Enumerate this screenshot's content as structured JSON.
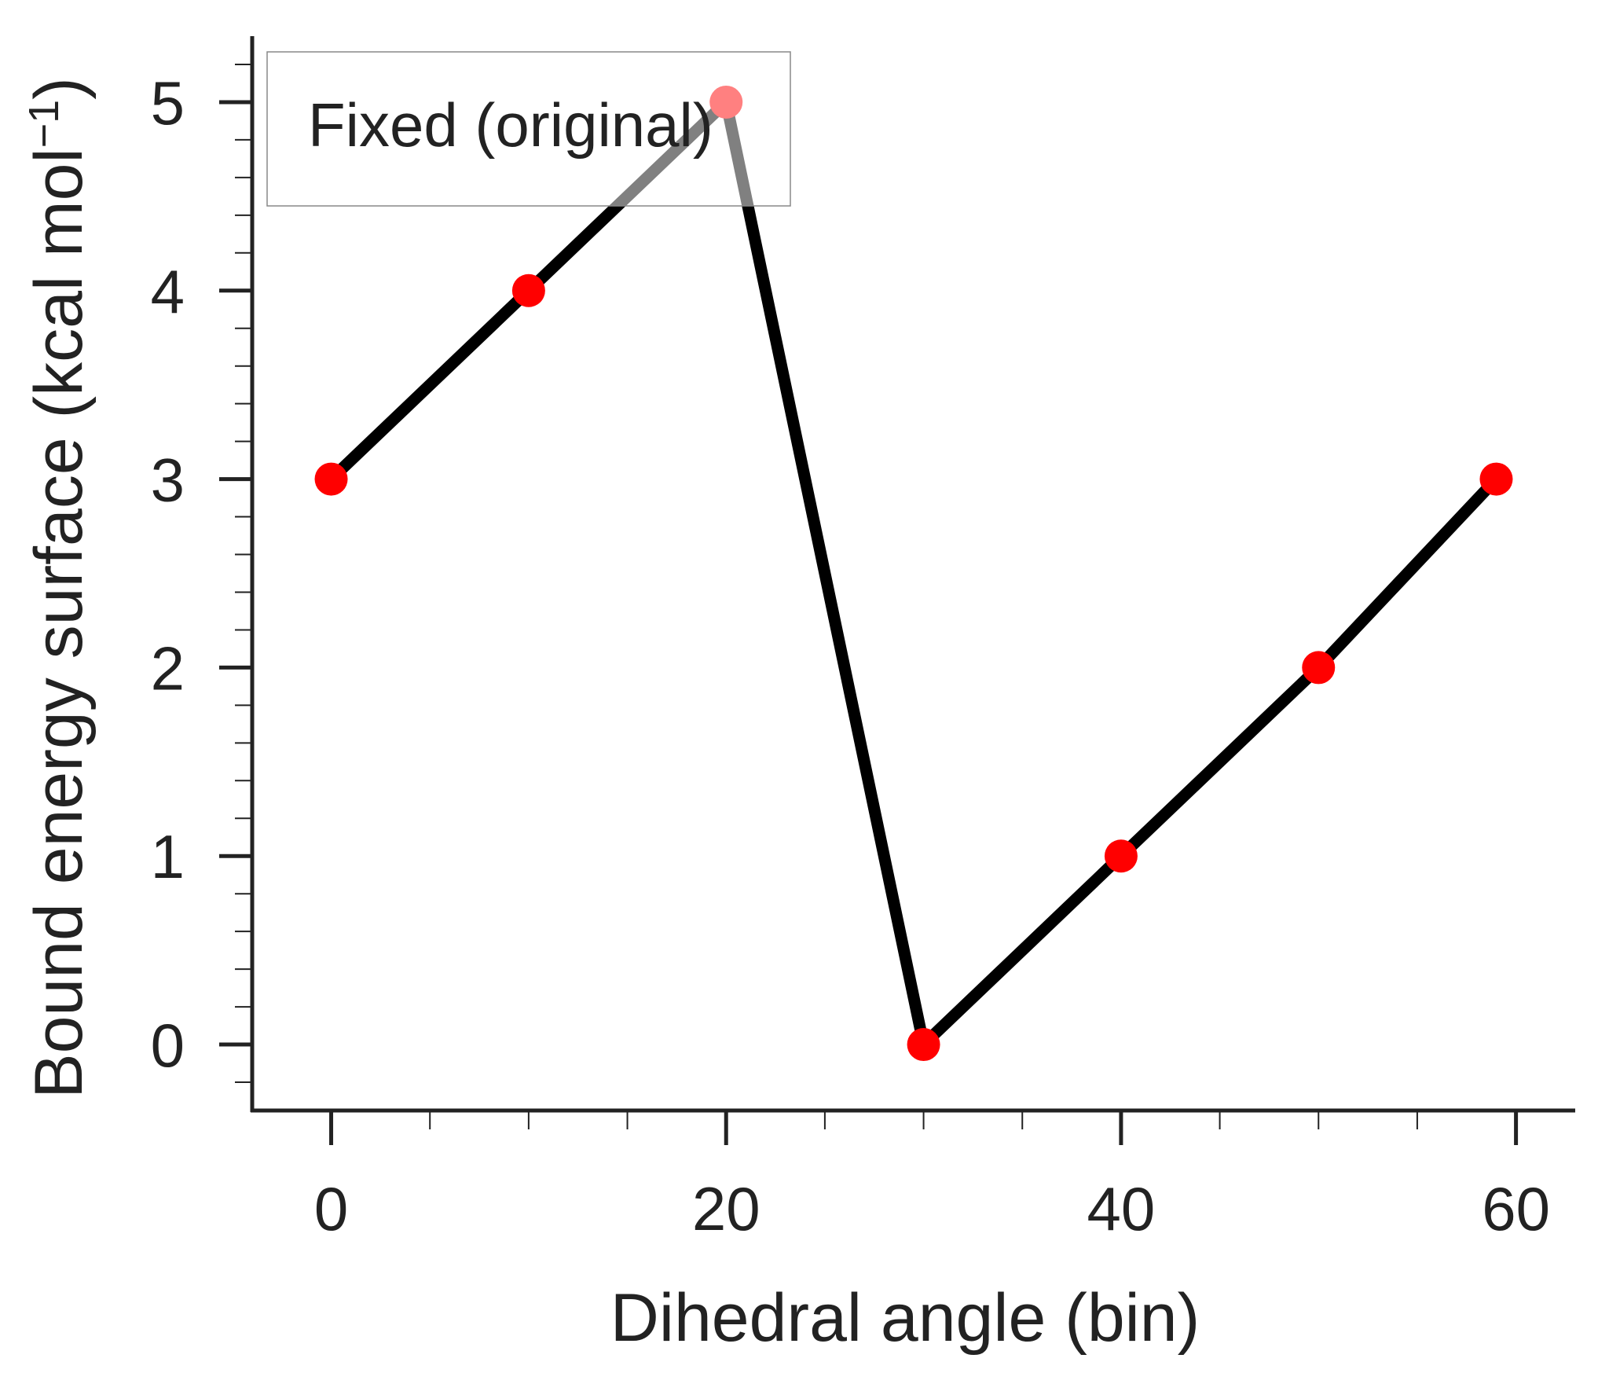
{
  "chart_data": {
    "type": "line",
    "x": [
      0,
      10,
      20,
      30,
      40,
      50,
      59
    ],
    "series": [
      {
        "name": "Fixed (original)",
        "values": [
          3,
          4,
          5,
          0,
          1,
          2,
          3
        ],
        "line_color": "#000000",
        "marker_color": "#ff0000"
      }
    ],
    "xlabel": "Dihedral angle (bin)",
    "ylabel_main": "Bound energy surface (kcal mol",
    "ylabel_sup": "−1",
    "ylabel_close": ")",
    "xlim": [
      -4,
      63
    ],
    "ylim": [
      -0.35,
      5.35
    ],
    "x_ticks": [
      0,
      20,
      40,
      60
    ],
    "x_tick_labels": [
      "0",
      "20",
      "40",
      "60"
    ],
    "x_minor_ticks": [
      5,
      10,
      15,
      25,
      30,
      35,
      45,
      50,
      55
    ],
    "y_ticks": [
      0,
      1,
      2,
      3,
      4,
      5
    ],
    "y_tick_labels": [
      "0",
      "1",
      "2",
      "3",
      "4",
      "5"
    ],
    "y_minor_step": 0.2,
    "legend": "top-left",
    "grid": false
  }
}
